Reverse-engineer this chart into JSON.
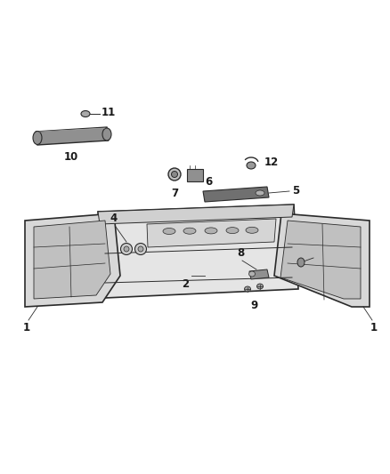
{
  "background_color": "#ffffff",
  "line_color": "#2a2a2a",
  "fill_light": "#e0e0e0",
  "fill_mid": "#c8c8c8",
  "fill_dark": "#909090",
  "label_color": "#1a1a1a",
  "fig_width": 4.38,
  "fig_height": 5.33,
  "dpi": 100
}
